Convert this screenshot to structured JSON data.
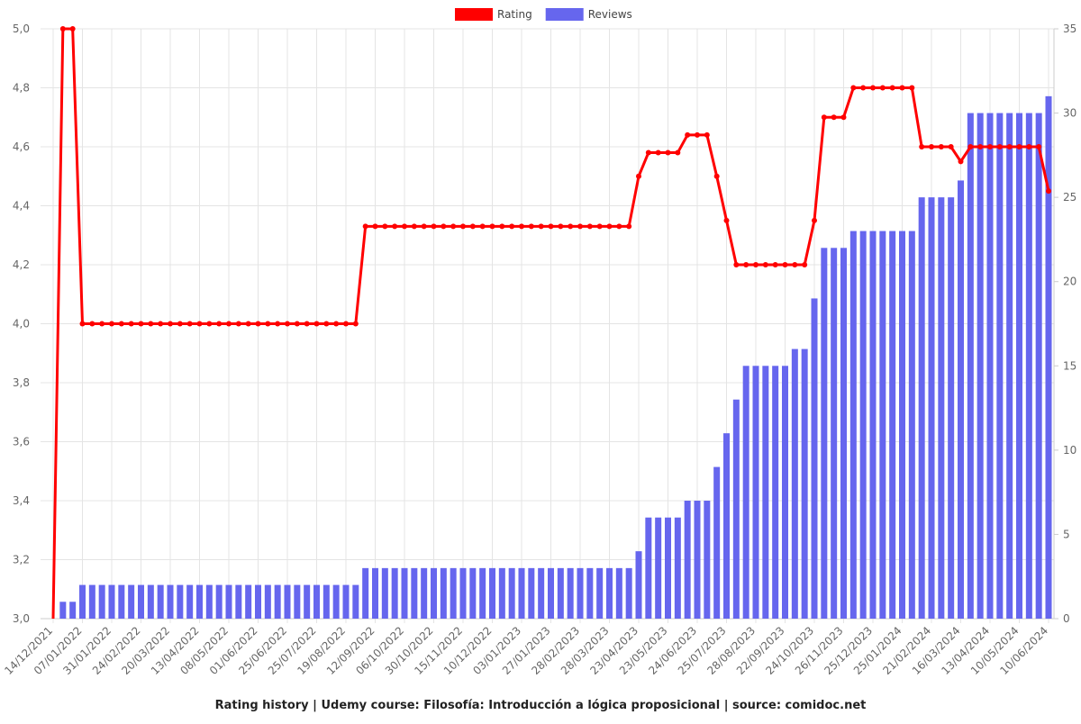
{
  "chart_data": {
    "type": "bar-line",
    "title": "Rating history | Udemy course: Filosofía: Introducción a lógica proposicional | source: comidoc.net",
    "categories": [
      "14/12/2021",
      null,
      null,
      "07/01/2022",
      null,
      null,
      "31/01/2022",
      null,
      null,
      "24/02/2022",
      null,
      null,
      "20/03/2022",
      null,
      null,
      "13/04/2022",
      null,
      null,
      "08/05/2022",
      null,
      null,
      "01/06/2022",
      null,
      null,
      "25/06/2022",
      null,
      null,
      "25/07/2022",
      null,
      null,
      "19/08/2022",
      null,
      null,
      "12/09/2022",
      null,
      null,
      "06/10/2022",
      null,
      null,
      "30/10/2022",
      null,
      null,
      "15/11/2022",
      null,
      null,
      "10/12/2022",
      null,
      null,
      "03/01/2023",
      null,
      null,
      "27/01/2023",
      null,
      null,
      "28/02/2023",
      null,
      null,
      "28/03/2023",
      null,
      null,
      "23/04/2023",
      null,
      null,
      "23/05/2023",
      null,
      null,
      "24/06/2023",
      null,
      null,
      "25/07/2023",
      null,
      null,
      "28/08/2023",
      null,
      null,
      "22/09/2023",
      null,
      null,
      "24/10/2023",
      null,
      null,
      "26/11/2023",
      null,
      null,
      "25/12/2023",
      null,
      null,
      "25/01/2024",
      null,
      null,
      "21/02/2024",
      null,
      null,
      "16/03/2024",
      null,
      null,
      "13/04/2024",
      null,
      null,
      "10/05/2024",
      null,
      null,
      "10/06/2024"
    ],
    "series": [
      {
        "name": "Rating",
        "color": "#ff0000",
        "kind": "line",
        "axis": "y",
        "values": [
          3,
          5,
          5,
          4,
          4,
          4,
          4,
          4,
          4,
          4,
          4,
          4,
          4,
          4,
          4,
          4,
          4,
          4,
          4,
          4,
          4,
          4,
          4,
          4,
          4,
          4,
          4,
          4,
          4,
          4,
          4,
          4,
          4.33,
          4.33,
          4.33,
          4.33,
          4.33,
          4.33,
          4.33,
          4.33,
          4.33,
          4.33,
          4.33,
          4.33,
          4.33,
          4.33,
          4.33,
          4.33,
          4.33,
          4.33,
          4.33,
          4.33,
          4.33,
          4.33,
          4.33,
          4.33,
          4.33,
          4.33,
          4.33,
          4.33,
          4.5,
          4.58,
          4.58,
          4.58,
          4.58,
          4.64,
          4.64,
          4.64,
          4.5,
          4.35,
          4.2,
          4.2,
          4.2,
          4.2,
          4.2,
          4.2,
          4.2,
          4.2,
          4.35,
          4.7,
          4.7,
          4.7,
          4.8,
          4.8,
          4.8,
          4.8,
          4.8,
          4.8,
          4.8,
          4.6,
          4.6,
          4.6,
          4.6,
          4.55,
          4.6,
          4.6,
          4.6,
          4.6,
          4.6,
          4.6,
          4.6,
          4.6,
          4.45
        ]
      },
      {
        "name": "Reviews",
        "color": "#6666ee",
        "kind": "bar",
        "axis": "y2",
        "values": [
          0,
          1,
          1,
          2,
          2,
          2,
          2,
          2,
          2,
          2,
          2,
          2,
          2,
          2,
          2,
          2,
          2,
          2,
          2,
          2,
          2,
          2,
          2,
          2,
          2,
          2,
          2,
          2,
          2,
          2,
          2,
          2,
          3,
          3,
          3,
          3,
          3,
          3,
          3,
          3,
          3,
          3,
          3,
          3,
          3,
          3,
          3,
          3,
          3,
          3,
          3,
          3,
          3,
          3,
          3,
          3,
          3,
          3,
          3,
          3,
          4,
          6,
          6,
          6,
          6,
          7,
          7,
          7,
          9,
          11,
          13,
          15,
          15,
          15,
          15,
          15,
          16,
          16,
          19,
          22,
          22,
          22,
          23,
          23,
          23,
          23,
          23,
          23,
          23,
          25,
          25,
          25,
          25,
          26,
          30,
          30,
          30,
          30,
          30,
          30,
          30,
          30,
          31
        ]
      }
    ],
    "ylim": [
      3,
      5
    ],
    "yticks": [
      {
        "value": 3,
        "label": "3,0"
      },
      {
        "value": 3.2,
        "label": "3,2"
      },
      {
        "value": 3.4,
        "label": "3,4"
      },
      {
        "value": 3.6,
        "label": "3,6"
      },
      {
        "value": 3.8,
        "label": "3,8"
      },
      {
        "value": 4,
        "label": "4,0"
      },
      {
        "value": 4.2,
        "label": "4,2"
      },
      {
        "value": 4.4,
        "label": "4,4"
      },
      {
        "value": 4.6,
        "label": "4,6"
      },
      {
        "value": 4.8,
        "label": "4,8"
      },
      {
        "value": 5,
        "label": "5,0"
      }
    ],
    "y2lim": [
      0,
      35
    ],
    "y2ticks": [
      0,
      5,
      10,
      15,
      20,
      25,
      30,
      35
    ],
    "grid": true
  }
}
